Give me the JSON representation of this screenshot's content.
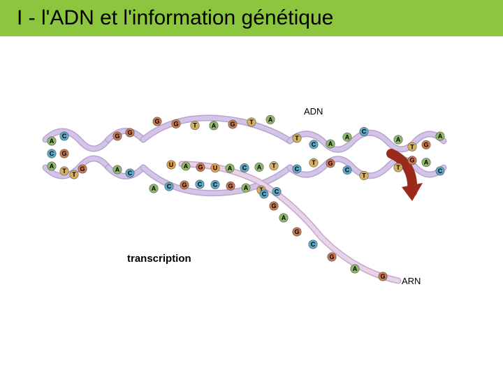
{
  "title": {
    "text": "I - l'ADN et l'information génétique",
    "bg_color": "#8cc63f",
    "font_size": 30
  },
  "labels": {
    "adn": "ADN",
    "transcription": "transcription",
    "arn": "ARN"
  },
  "colors": {
    "backbone_fill": "#d4c5e8",
    "backbone_stroke": "#9b8bb4",
    "rna_fill": "#e8d4e8",
    "rna_stroke": "#c8a8c8",
    "base_A": "#8fb868",
    "base_T": "#d4b060",
    "base_G": "#c97850",
    "base_C": "#5fa8c8",
    "base_U": "#e8a048",
    "arrow": "#9c2a1a"
  },
  "diagram": {
    "type": "infographic",
    "description": "DNA double helix with transcription bubble forming RNA strand",
    "dna_segments": 4,
    "rna_emerging": true
  },
  "bases": {
    "left_pairs": [
      [
        "A",
        "C"
      ],
      [
        "C",
        "G"
      ],
      [
        "A",
        "T"
      ],
      [
        "T",
        "G"
      ]
    ],
    "bubble_top": [
      "G",
      "G",
      "T",
      "A",
      "G",
      "T",
      "A"
    ],
    "bubble_bottom_dna": [
      "A",
      "C",
      "G",
      "C",
      "C",
      "G",
      "A",
      "T",
      "C"
    ],
    "bubble_rna": [
      "U",
      "A",
      "G",
      "U",
      "A",
      "C",
      "A",
      "T"
    ],
    "right_pairs": [
      [
        "T",
        "C",
        "A",
        "A",
        "C"
      ],
      [
        "C",
        "T",
        "G",
        "C",
        "T"
      ],
      [
        "A",
        "T",
        "G",
        "A"
      ]
    ],
    "rna_tail": [
      "C",
      "G",
      "A",
      "G",
      "C",
      "G",
      "A",
      "G"
    ]
  }
}
